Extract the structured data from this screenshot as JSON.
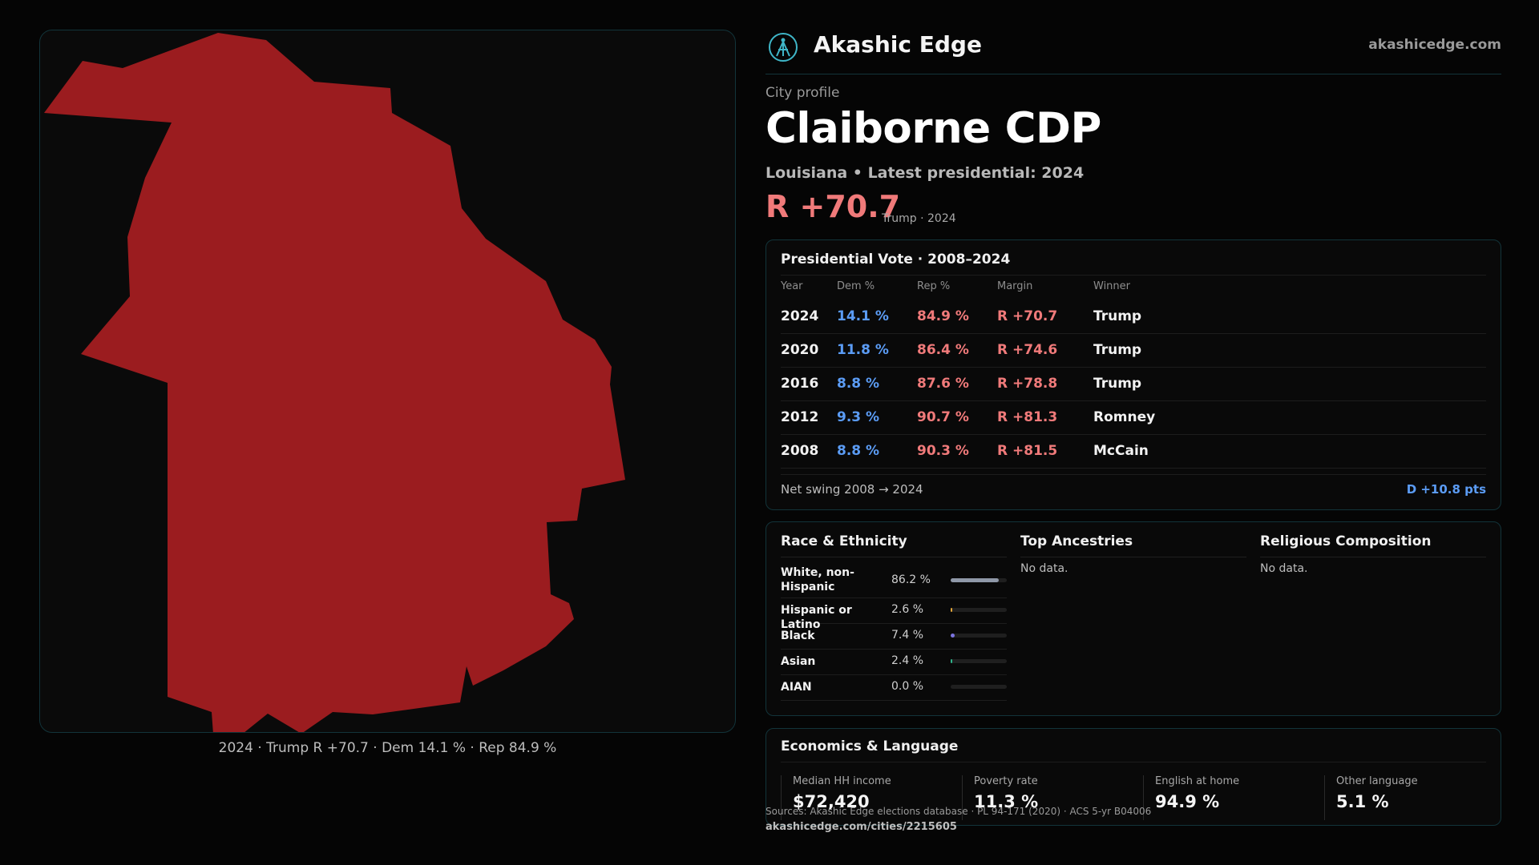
{
  "brand": {
    "name": "Akashic Edge",
    "url": "akashicedge.com",
    "logo_icon": "akashic-edge-logo-icon"
  },
  "profile": {
    "kicker": "City profile",
    "title": "Claiborne CDP",
    "subtitle": "Louisiana • Latest presidential: 2024",
    "margin": "R +70.7",
    "margin_note": "Trump · 2024"
  },
  "map": {
    "caption": "2024 · Trump R +70.7 · Dem 14.1 % · Rep 84.9 %",
    "fill_color": "#9b1c1f",
    "border_color": "#12343a"
  },
  "vote": {
    "title": "Presidential Vote · 2008–2024",
    "headers": {
      "year": "Year",
      "dem": "Dem %",
      "rep": "Rep %",
      "margin": "Margin",
      "winner": "Winner"
    },
    "rows": [
      {
        "year": "2024",
        "dem": "14.1 %",
        "rep": "84.9 %",
        "margin": "R +70.7",
        "winner": "Trump"
      },
      {
        "year": "2020",
        "dem": "11.8 %",
        "rep": "86.4 %",
        "margin": "R +74.6",
        "winner": "Trump"
      },
      {
        "year": "2016",
        "dem": "8.8 %",
        "rep": "87.6 %",
        "margin": "R +78.8",
        "winner": "Trump"
      },
      {
        "year": "2012",
        "dem": "9.3 %",
        "rep": "90.7 %",
        "margin": "R +81.3",
        "winner": "Romney"
      },
      {
        "year": "2008",
        "dem": "8.8 %",
        "rep": "90.3 %",
        "margin": "R +81.5",
        "winner": "McCain"
      }
    ],
    "swing_label": "Net swing 2008 → 2024",
    "swing_value": "D +10.8 pts",
    "colors": {
      "dem": "#5b9cf5",
      "rep": "#f07a7a"
    }
  },
  "race": {
    "title": "Race & Ethnicity",
    "rows": [
      {
        "label": "White, non-Hispanic",
        "pct": "86.2 %",
        "share": 0.862,
        "color": "#8f98a8"
      },
      {
        "label": "Hispanic or Latino",
        "pct": "2.6 %",
        "share": 0.026,
        "color": "#e0a53a"
      },
      {
        "label": "Black",
        "pct": "7.4 %",
        "share": 0.074,
        "color": "#7b74e0"
      },
      {
        "label": "Asian",
        "pct": "2.4 %",
        "share": 0.024,
        "color": "#2fb38a"
      },
      {
        "label": "AIAN",
        "pct": "0.0 %",
        "share": 0.0,
        "color": "#d06060"
      }
    ]
  },
  "ancestries": {
    "title": "Top Ancestries",
    "empty": "No data."
  },
  "religion": {
    "title": "Religious Composition",
    "empty": "No data."
  },
  "economics": {
    "title": "Economics & Language",
    "stats": [
      {
        "label": "Median HH income",
        "value": "$72,420"
      },
      {
        "label": "Poverty rate",
        "value": "11.3 %"
      },
      {
        "label": "English at home",
        "value": "94.9 %"
      },
      {
        "label": "Other language",
        "value": "5.1 %"
      }
    ]
  },
  "footer": {
    "sources": "Sources: Akashic Edge elections database · PL 94-171 (2020) · ACS 5-yr B04006",
    "canonical": "akashicedge.com/cities/2215605"
  }
}
